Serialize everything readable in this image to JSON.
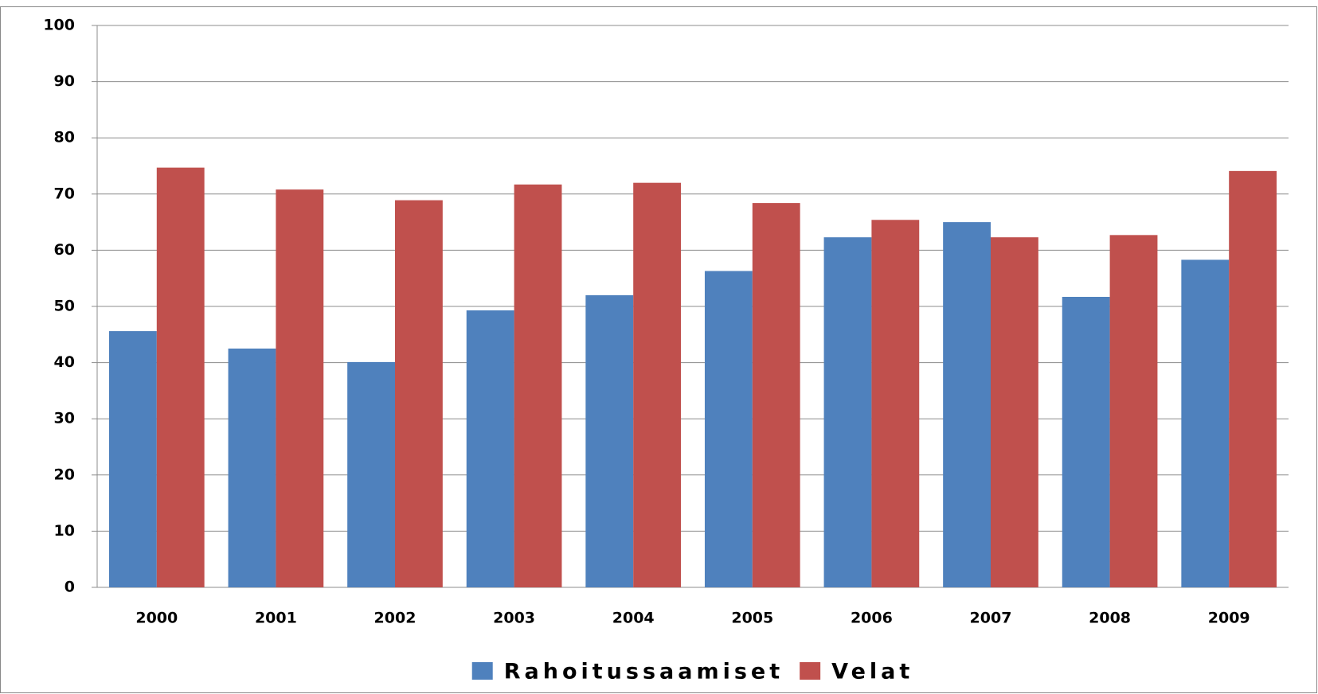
{
  "chart_data": {
    "type": "bar",
    "categories": [
      "2000",
      "2001",
      "2002",
      "2003",
      "2004",
      "2005",
      "2006",
      "2007",
      "2008",
      "2009"
    ],
    "series": [
      {
        "name": "Rahoitussaamiset",
        "color": "#4f81bd",
        "values": [
          45.6,
          42.5,
          40.1,
          49.3,
          52.0,
          56.3,
          62.3,
          65.0,
          51.7,
          58.3
        ]
      },
      {
        "name": "Velat",
        "color": "#c0504d",
        "values": [
          74.7,
          70.8,
          68.9,
          71.7,
          72.0,
          68.4,
          65.4,
          62.3,
          62.7,
          74.1
        ]
      }
    ],
    "ylim": [
      0,
      100
    ],
    "yticks": [
      0,
      10,
      20,
      30,
      40,
      50,
      60,
      70,
      80,
      90,
      100
    ],
    "grid": true,
    "legend": "bottom"
  }
}
